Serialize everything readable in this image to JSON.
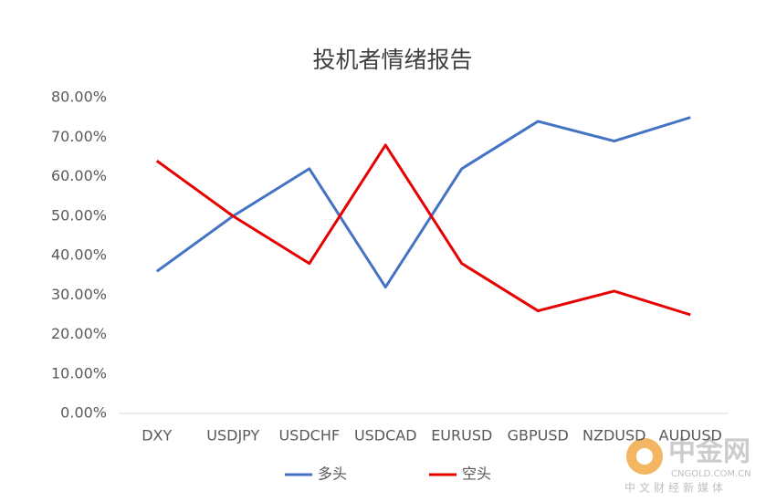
{
  "chart_data": {
    "type": "line",
    "title": "投机者情绪报告",
    "categories": [
      "DXY",
      "USDJPY",
      "USDCHF",
      "USDCAD",
      "EURUSD",
      "GBPUSD",
      "NZDUSD",
      "AUDUSD"
    ],
    "series": [
      {
        "name": "多头",
        "color": "#4472c4",
        "values": [
          36,
          50,
          62,
          32,
          62,
          74,
          69,
          75
        ]
      },
      {
        "name": "空头",
        "color": "#e60000",
        "values": [
          64,
          50,
          38,
          68,
          38,
          26,
          31,
          25
        ]
      }
    ],
    "ylim": [
      0,
      80
    ],
    "yticks": [
      {
        "value": 0,
        "label": "0.00%"
      },
      {
        "value": 10,
        "label": "10.00%"
      },
      {
        "value": 20,
        "label": "20.00%"
      },
      {
        "value": 30,
        "label": "30.00%"
      },
      {
        "value": 40,
        "label": "40.00%"
      },
      {
        "value": 50,
        "label": "50.00%"
      },
      {
        "value": 60,
        "label": "60.00%"
      },
      {
        "value": 70,
        "label": "70.00%"
      },
      {
        "value": 80,
        "label": "80.00%"
      }
    ],
    "grid": false,
    "legend": "bottom"
  },
  "watermark": {
    "brand": "中金网",
    "domain": "CNGOLD.COM.CN",
    "slogan": "中文财经新媒体"
  }
}
